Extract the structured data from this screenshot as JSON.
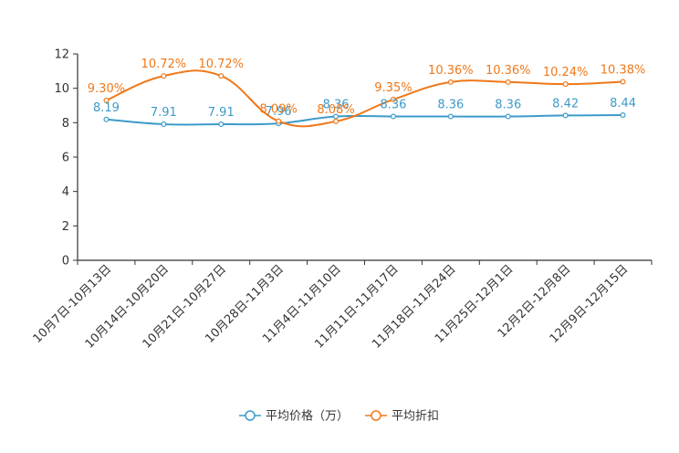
{
  "chart_data": {
    "type": "line",
    "title": "",
    "xlabel": "",
    "ylabel": "",
    "ylim": [
      0,
      12
    ],
    "yticks": [
      "0",
      "2",
      "4",
      "6",
      "8",
      "10",
      "12"
    ],
    "grid": false,
    "legend_position": "bottom",
    "categories": [
      "10月7日-10月13日",
      "10月14日-10月20日",
      "10月21日-10月27日",
      "10月28日-11月3日",
      "11月4日-11月10日",
      "11月11日-11月17日",
      "11月18日-11月24日",
      "11月25日-12月1日",
      "12月2日-12月8日",
      "12月9日-12月15日"
    ],
    "series": [
      {
        "name": "平均价格（万）",
        "color": "#3d9ac9",
        "values": [
          8.19,
          7.91,
          7.91,
          7.96,
          8.36,
          8.36,
          8.36,
          8.36,
          8.42,
          8.44
        ],
        "labels": [
          "8.19",
          "7.91",
          "7.91",
          "7.96",
          "8.36",
          "8.36",
          "8.36",
          "8.36",
          "8.42",
          "8.44"
        ]
      },
      {
        "name": "平均折扣",
        "color": "#f07819",
        "values": [
          9.3,
          10.72,
          10.72,
          8.09,
          8.08,
          9.35,
          10.36,
          10.36,
          10.24,
          10.38
        ],
        "labels": [
          "9.30%",
          "10.72%",
          "10.72%",
          "8.09%",
          "8.08%",
          "9.35%",
          "10.36%",
          "10.36%",
          "10.24%",
          "10.38%"
        ]
      }
    ]
  }
}
